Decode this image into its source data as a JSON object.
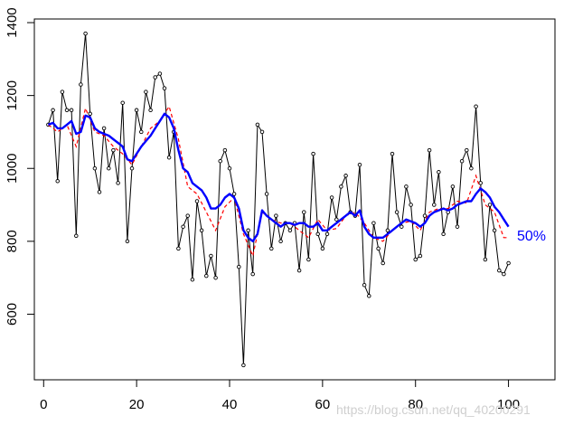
{
  "chart_data": {
    "type": "scatter",
    "title": "",
    "xlabel": "",
    "ylabel": "",
    "xlim": [
      -2,
      110
    ],
    "ylim": [
      420,
      1410
    ],
    "x_ticks": [
      0,
      20,
      40,
      60,
      80,
      100
    ],
    "y_ticks": [
      600,
      800,
      1000,
      1200,
      1400
    ],
    "grid": false,
    "legend": "none",
    "series": [
      {
        "style": "points joined by thin line",
        "color": "#000000",
        "x": [
          1,
          2,
          3,
          4,
          5,
          6,
          7,
          8,
          9,
          10,
          11,
          12,
          13,
          14,
          15,
          16,
          17,
          18,
          19,
          20,
          21,
          22,
          23,
          24,
          25,
          26,
          27,
          28,
          29,
          30,
          31,
          32,
          33,
          34,
          35,
          36,
          37,
          38,
          39,
          40,
          41,
          42,
          43,
          44,
          45,
          46,
          47,
          48,
          49,
          50,
          51,
          52,
          53,
          54,
          55,
          56,
          57,
          58,
          59,
          60,
          61,
          62,
          63,
          64,
          65,
          66,
          67,
          68,
          69,
          70,
          71,
          72,
          73,
          74,
          75,
          76,
          77,
          78,
          79,
          80,
          81,
          82,
          83,
          84,
          85,
          86,
          87,
          88,
          89,
          90,
          91,
          92,
          93,
          94,
          95,
          96,
          97,
          98,
          99,
          100
        ],
        "values": [
          1120,
          1160,
          965,
          1210,
          1160,
          1160,
          815,
          1230,
          1370,
          1150,
          1000,
          935,
          1110,
          1000,
          1050,
          960,
          1180,
          800,
          1000,
          1160,
          1100,
          1210,
          1160,
          1250,
          1260,
          1220,
          1030,
          1100,
          780,
          840,
          870,
          695,
          910,
          830,
          705,
          760,
          700,
          1020,
          1050,
          1000,
          930,
          730,
          460,
          830,
          710,
          1120,
          1100,
          930,
          780,
          870,
          800,
          850,
          830,
          850,
          720,
          880,
          750,
          1040,
          820,
          780,
          820,
          920,
          860,
          950,
          980,
          880,
          870,
          1010,
          680,
          650,
          850,
          780,
          740,
          830,
          1040,
          880,
          840,
          950,
          900,
          750,
          760,
          870,
          1050,
          900,
          990,
          820,
          880,
          950,
          840,
          1020,
          1050,
          1000,
          1170,
          960,
          750,
          900,
          830,
          720,
          710,
          740
        ]
      },
      {
        "style": "dashed line",
        "color": "#ff0000",
        "x": [
          1,
          3,
          5,
          7,
          9,
          11,
          13,
          15,
          17,
          19,
          21,
          23,
          25,
          27,
          29,
          31,
          33,
          35,
          37,
          39,
          41,
          43,
          45,
          47,
          49,
          51,
          53,
          55,
          57,
          59,
          61,
          63,
          65,
          67,
          69,
          71,
          73,
          75,
          77,
          79,
          81,
          83,
          85,
          87,
          89,
          91,
          93,
          95,
          97,
          99,
          100
        ],
        "values": [
          1120,
          1100,
          1120,
          1060,
          1165,
          1100,
          1090,
          1060,
          1040,
          1010,
          1060,
          1110,
          1130,
          1170,
          1080,
          950,
          930,
          880,
          830,
          895,
          920,
          820,
          760,
          880,
          860,
          850,
          850,
          830,
          810,
          860,
          830,
          835,
          870,
          880,
          850,
          810,
          800,
          830,
          850,
          855,
          830,
          880,
          890,
          890,
          910,
          905,
          980,
          900,
          880,
          810,
          810
        ]
      },
      {
        "style": "solid thick line",
        "color": "#0000ff",
        "label": "50%",
        "x": [
          1,
          2,
          3,
          4,
          5,
          6,
          7,
          8,
          9,
          10,
          11,
          12,
          13,
          14,
          15,
          16,
          17,
          18,
          19,
          20,
          21,
          22,
          23,
          24,
          25,
          26,
          27,
          28,
          29,
          30,
          31,
          32,
          33,
          34,
          35,
          36,
          37,
          38,
          39,
          40,
          41,
          42,
          43,
          44,
          45,
          46,
          47,
          48,
          49,
          50,
          51,
          52,
          53,
          54,
          55,
          56,
          57,
          58,
          59,
          60,
          61,
          62,
          63,
          64,
          65,
          66,
          67,
          68,
          69,
          70,
          71,
          72,
          73,
          74,
          75,
          76,
          77,
          78,
          79,
          80,
          81,
          82,
          83,
          84,
          85,
          86,
          87,
          88,
          89,
          90,
          91,
          92,
          93,
          94,
          95,
          96,
          97,
          98,
          99,
          100
        ],
        "values": [
          1120,
          1125,
          1110,
          1110,
          1120,
          1130,
          1095,
          1100,
          1145,
          1140,
          1110,
          1100,
          1095,
          1090,
          1080,
          1070,
          1060,
          1025,
          1020,
          1040,
          1060,
          1075,
          1090,
          1110,
          1130,
          1150,
          1140,
          1110,
          1050,
          1000,
          990,
          960,
          950,
          940,
          920,
          890,
          890,
          900,
          920,
          930,
          920,
          890,
          830,
          810,
          800,
          820,
          885,
          870,
          860,
          850,
          840,
          850,
          850,
          845,
          850,
          850,
          840,
          840,
          850,
          830,
          830,
          840,
          850,
          860,
          870,
          880,
          870,
          885,
          840,
          820,
          810,
          810,
          810,
          820,
          830,
          840,
          850,
          860,
          855,
          850,
          840,
          850,
          870,
          880,
          885,
          890,
          885,
          890,
          900,
          905,
          910,
          910,
          930,
          945,
          935,
          920,
          895,
          880,
          860,
          840
        ]
      }
    ]
  },
  "annotation": {
    "text": "50%",
    "color": "#0000ff"
  },
  "watermark": {
    "text": "https://blog.csdn.net/qq_40200291"
  }
}
